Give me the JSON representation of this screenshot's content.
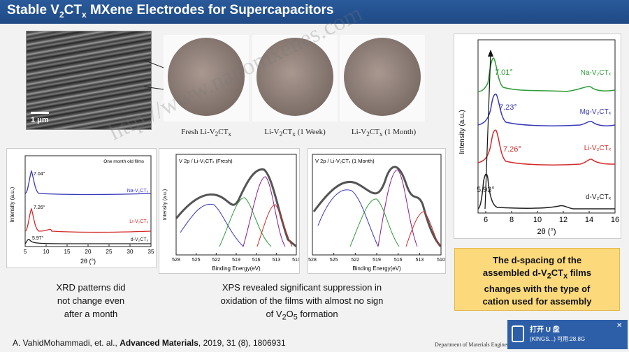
{
  "slide": {
    "title_prefix": "Stable V",
    "title_sub1": "2",
    "title_mid": "CT",
    "title_sub2": "x",
    "title_suffix": " MXene Electrodes for Supercapacitors"
  },
  "sem_image": {
    "scale_label": "1 μm"
  },
  "photos": [
    {
      "caption_a": "Fresh Li-V",
      "caption_sub1": "2",
      "caption_b": "CT",
      "caption_sub2": "x",
      "caption_c": ""
    },
    {
      "caption_a": "Li-V",
      "caption_sub1": "2",
      "caption_b": "CT",
      "caption_sub2": "x",
      "caption_c": " (1 Week)"
    },
    {
      "caption_a": "Li-V",
      "caption_sub1": "2",
      "caption_b": "CT",
      "caption_sub2": "x",
      "caption_c": " (1 Month)"
    }
  ],
  "chart_data": [
    {
      "type": "line",
      "id": "xrd-main",
      "xlabel": "2θ (°)",
      "ylabel": "Intensity (a.u.)",
      "xlim": [
        5,
        16
      ],
      "xticks": [
        "6",
        "8",
        "10",
        "12",
        "14",
        "16"
      ],
      "series": [
        {
          "name": "Na-V₂CTₓ",
          "color": "#2e9a36",
          "peak_label": "7.01°",
          "peak_x": 7.01
        },
        {
          "name": "Mg-V₂CTₓ",
          "color": "#3838b8",
          "peak_label": "7.23°",
          "peak_x": 7.23
        },
        {
          "name": "Li-V₂CTₓ",
          "color": "#d42a2a",
          "peak_label": "7.26°",
          "peak_x": 7.26
        },
        {
          "name": "d-V₂CTₓ",
          "color": "#222222",
          "peak_label": "5.93°",
          "peak_x": 5.93
        }
      ]
    },
    {
      "type": "line",
      "id": "xrd-small",
      "title": "One month old films",
      "xlabel": "2θ (°)",
      "ylabel": "Intensity (a.u.)",
      "xlim": [
        5,
        35
      ],
      "xticks": [
        "5",
        "10",
        "15",
        "20",
        "25",
        "30",
        "35"
      ],
      "series": [
        {
          "name": "Na-V₂CTₓ",
          "color": "#3838b8",
          "peak_label": "7.04°",
          "peak_x": 7.04
        },
        {
          "name": "Li-V₂CTₓ",
          "color": "#d42a2a",
          "peak_label": "7.26°",
          "peak_x": 7.26
        },
        {
          "name": "d-V₂CTₓ",
          "color": "#222222",
          "peak_label": "5.97°",
          "peak_x": 5.97
        }
      ]
    },
    {
      "type": "line",
      "id": "xps-fresh",
      "title": "V 2p / Li-V₂CTₓ (Fresh)",
      "xlabel": "Binding Energy(eV)",
      "ylabel": "Intensity (a.u.)",
      "xlim": [
        528,
        510
      ],
      "xticks": [
        "528",
        "525",
        "522",
        "519",
        "516",
        "513",
        "510"
      ]
    },
    {
      "type": "line",
      "id": "xps-month",
      "title": "V 2p / Li-V₂CTₓ (1 Month)",
      "xlabel": "Binding Energy(eV)",
      "ylabel": "Intensity (a.u.)",
      "xlim": [
        528,
        510
      ],
      "xticks": [
        "528",
        "525",
        "522",
        "519",
        "516",
        "513",
        "510"
      ]
    }
  ],
  "captions": {
    "xrd_line1": "XRD patterns did",
    "xrd_line2": "not change even",
    "xrd_line3": "after a month",
    "xps_line1": "XPS revealed significant suppression in",
    "xps_line2": "oxidation of the films with almost no sign",
    "xps_line3a": "of V",
    "xps_sub1": "2",
    "xps_line3b": "O",
    "xps_sub2": "5",
    "xps_line3c": " formation",
    "note_line1": "The d-spacing of the",
    "note_line2a": "assembled d-V",
    "note_sub1": "2",
    "note_line2b": "CT",
    "note_sub2": "x",
    "note_line2c": " films",
    "note_line3": "changes with the type of",
    "note_line4": "cation used for assembly"
  },
  "reference": {
    "authors": "A. VahidMohammadi, et. al., ",
    "journal": "Advanced Materials",
    "details": ", 2019, 31 (8), 1806931"
  },
  "footer": {
    "department": "Department of Materials Engineering"
  },
  "usb_popup": {
    "title": "打开 U 盘",
    "subtitle": "(KINGS...) 可用:28.8G",
    "close": "✕"
  },
  "watermark": {
    "text": "http://www.nanomxenes.com"
  }
}
